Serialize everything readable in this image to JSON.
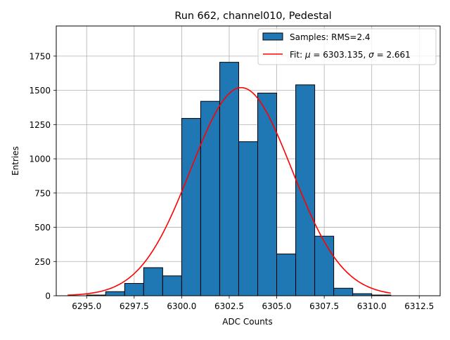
{
  "chart_data": {
    "type": "bar",
    "title": "Run 662, channel010, Pedestal",
    "xlabel": "ADC Counts",
    "ylabel": "Entries",
    "xlim": [
      6293.4,
      6313.6
    ],
    "ylim": [
      0,
      1970
    ],
    "grid": true,
    "legend_placement": "top-right",
    "xticks": [
      6295.0,
      6297.5,
      6300.0,
      6302.5,
      6305.0,
      6307.5,
      6310.0,
      6312.5
    ],
    "xtick_labels": [
      "6295.0",
      "6297.5",
      "6300.0",
      "6302.5",
      "6305.0",
      "6307.5",
      "6310.0",
      "6312.5"
    ],
    "yticks": [
      0,
      250,
      500,
      750,
      1000,
      1250,
      1500,
      1750
    ],
    "ytick_labels": [
      "0",
      "250",
      "500",
      "750",
      "1000",
      "1250",
      "1500",
      "1750"
    ],
    "bin_edges": [
      6295,
      6296,
      6297,
      6298,
      6299,
      6300,
      6301,
      6302,
      6303,
      6304,
      6305,
      6306,
      6307,
      6308,
      6309,
      6310,
      6311
    ],
    "counts": [
      5,
      30,
      90,
      205,
      145,
      1295,
      1420,
      1705,
      1125,
      1480,
      305,
      1540,
      435,
      55,
      15,
      5
    ],
    "series": [
      {
        "name": "Samples: RMS=2.4",
        "kind": "histogram",
        "color": "#1f77b4",
        "edge": "#000000"
      },
      {
        "name": "Fit: μ = 6303.135, σ = 2.661",
        "kind": "gaussian",
        "color": "#ff0000",
        "mu": 6303.135,
        "sigma": 2.661,
        "amplitude": 1520,
        "x_range": [
          6294,
          6311
        ]
      }
    ],
    "legend": {
      "samples_label": "Samples: RMS=2.4",
      "fit_prefix": "Fit: ",
      "fit_mu_sym": "μ",
      "fit_mu_val": " = 6303.135, ",
      "fit_sigma_sym": "σ",
      "fit_sigma_val": " = 2.661"
    }
  }
}
